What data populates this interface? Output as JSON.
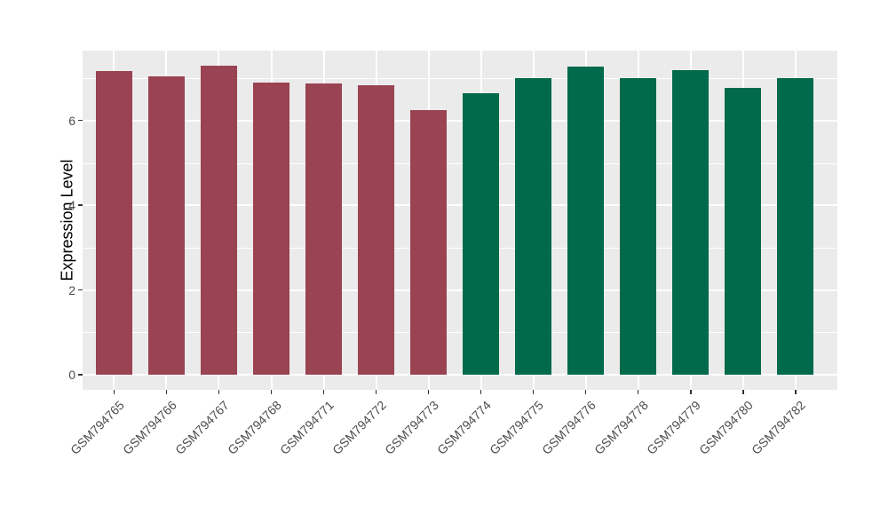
{
  "chart_data": {
    "type": "bar",
    "title": "",
    "xlabel": "",
    "ylabel": "Expression Level",
    "categories": [
      "GSM794765",
      "GSM794766",
      "GSM794767",
      "GSM794768",
      "GSM794771",
      "GSM794772",
      "GSM794773",
      "GSM794774",
      "GSM794775",
      "GSM794776",
      "GSM794778",
      "GSM794779",
      "GSM794780",
      "GSM794782"
    ],
    "values": [
      7.16,
      7.04,
      7.3,
      6.9,
      6.88,
      6.83,
      6.25,
      6.65,
      7.0,
      7.27,
      7.0,
      7.19,
      6.77,
      7.0
    ],
    "bar_colors": [
      "#9A4352",
      "#9A4352",
      "#9A4352",
      "#9A4352",
      "#9A4352",
      "#9A4352",
      "#9A4352",
      "#016A4B",
      "#016A4B",
      "#016A4B",
      "#016A4B",
      "#016A4B",
      "#016A4B",
      "#016A4B"
    ],
    "ylim": [
      -0.36,
      7.65
    ],
    "yticks": [
      0,
      2,
      4,
      6
    ],
    "ytick_labels": [
      "0",
      "2",
      "4",
      "6"
    ],
    "yticks_minor": [
      1,
      3,
      5,
      7
    ],
    "grid": "on",
    "legend": "none",
    "panel_background": "#EBEBEB",
    "grid_color": "#FFFFFF"
  }
}
